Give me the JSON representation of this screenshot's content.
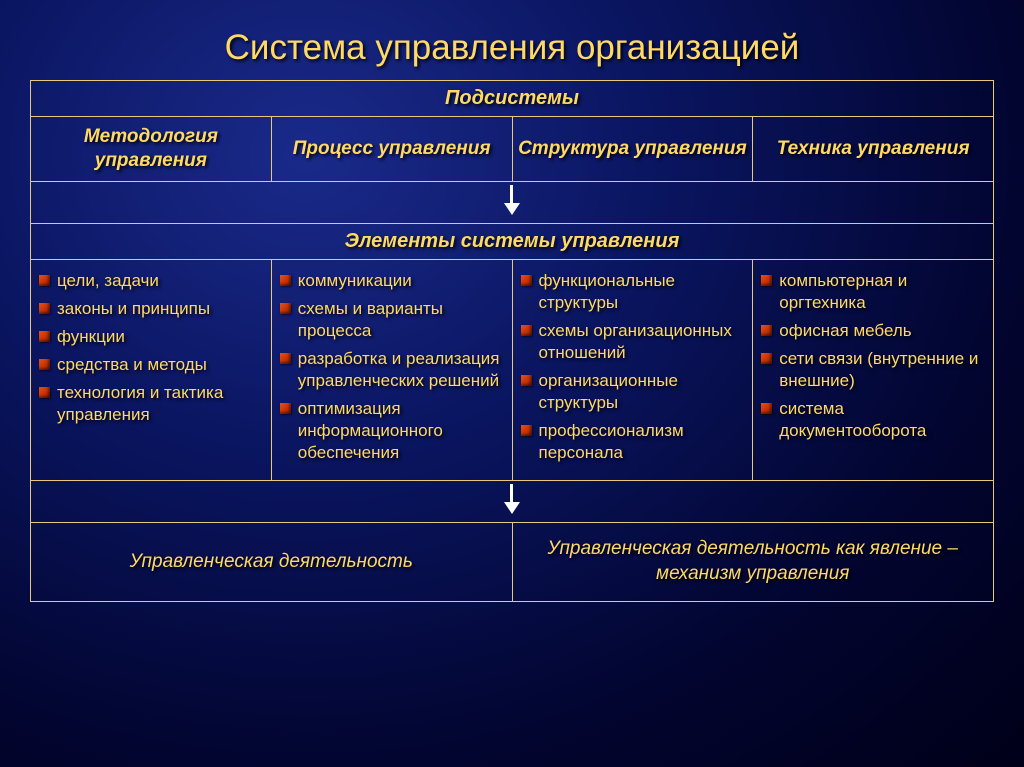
{
  "title": "Система управления организацией",
  "colors": {
    "text": "#ffd966",
    "border": "#e8c978",
    "bullet": "#e85020",
    "arrow": "#ffffff",
    "bg_center": "#1a2a8a",
    "bg_edge": "#000018"
  },
  "typography": {
    "title_fontsize": 35,
    "header_fontsize": 20,
    "sub_fontsize": 19,
    "body_fontsize": 17,
    "footer_fontsize": 19,
    "font_family": "Arial"
  },
  "header1": "Подсистемы",
  "subheaders": [
    "Методология управления",
    "Процесс управления",
    "Структура управления",
    "Техника управления"
  ],
  "header2": "Элементы системы управления",
  "columns": [
    {
      "items": [
        "цели, задачи",
        "законы и принципы",
        "функции",
        "средства и методы",
        "технология и тактика управления"
      ]
    },
    {
      "items": [
        "коммуникации",
        "схемы и варианты процесса",
        "разработка и реализация управленческих решений",
        "оптимизация информационного обеспечения"
      ]
    },
    {
      "items": [
        "функциональные структуры",
        "схемы организационных отношений",
        "организационные структуры",
        "профессионализм персонала"
      ]
    },
    {
      "items": [
        "компьютерная и оргтехника",
        "офисная мебель",
        "сети связи (внутренние и внешние)",
        "система документооборота"
      ]
    }
  ],
  "footer": [
    "Управленческая деятельность",
    "Управленческая деятельность как явление – механизм управления"
  ]
}
